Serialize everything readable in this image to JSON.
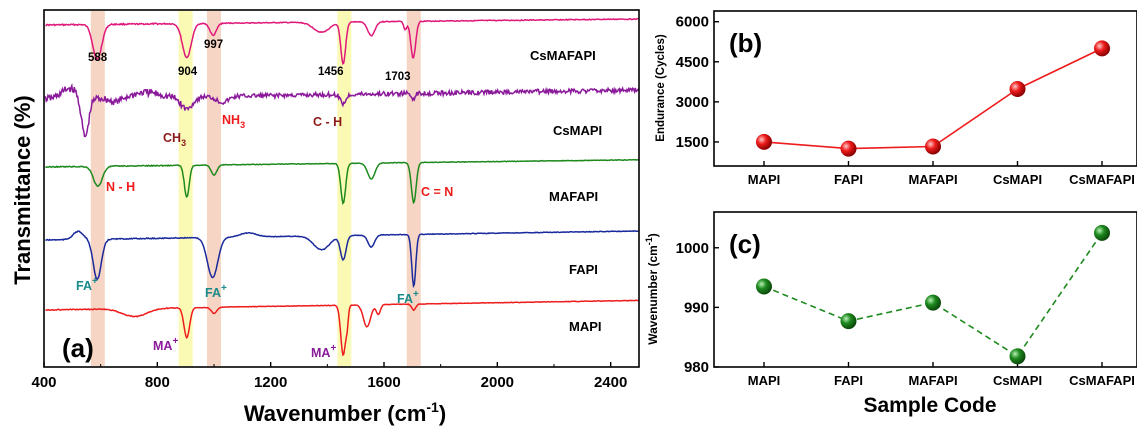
{
  "chart_data": [
    {
      "type": "line",
      "panel_label": "(a)",
      "xlabel": "Wavenumber (cm",
      "xlabel_sup": "-1",
      "xlabel_close": ")",
      "ylabel": "Transmittance (%)",
      "xlim": [
        400,
        2500
      ],
      "xticks": [
        400,
        800,
        1200,
        1600,
        2000,
        2400
      ],
      "bands": [
        {
          "x": 590,
          "color": "#f6d5c4"
        },
        {
          "x": 900,
          "color": "#fbfab5"
        },
        {
          "x": 1000,
          "color": "#f6d5c4"
        },
        {
          "x": 1460,
          "color": "#fbfab5"
        },
        {
          "x": 1705,
          "color": "#f6d5c4"
        }
      ],
      "series": [
        {
          "name": "CsMAFAPI",
          "color": "#e0187a"
        },
        {
          "name": "CsMAPI",
          "color": "#8b1a9b"
        },
        {
          "name": "MAFAPI",
          "color": "#1e8a1e"
        },
        {
          "name": "FAPI",
          "color": "#1a2a9c"
        },
        {
          "name": "MAPI",
          "color": "#ee1c1c"
        }
      ],
      "peak_labels": [
        "588",
        "904",
        "997",
        "1456",
        "1703"
      ],
      "annotations": [
        {
          "text": "CH",
          "sub": "3",
          "color": "#8b1a1a"
        },
        {
          "text": "NH",
          "sub": "3",
          "color": "#ee1c1c"
        },
        {
          "text": "C - H",
          "color": "#8b1a1a"
        },
        {
          "text": "N - H",
          "color": "#ee1c1c"
        },
        {
          "text": "C = N",
          "color": "#ee1c1c"
        },
        {
          "text": "FA",
          "sup": "+",
          "color": "#1a8a8a"
        },
        {
          "text": "FA",
          "sup": "+",
          "color": "#1a8a8a"
        },
        {
          "text": "FA",
          "sup": "+",
          "color": "#1a8a8a"
        },
        {
          "text": "MA",
          "sup": "+",
          "color": "#8b1a9b"
        },
        {
          "text": "MA",
          "sup": "+",
          "color": "#8b1a9b"
        }
      ]
    },
    {
      "type": "line",
      "panel_label": "(b)",
      "ylabel": "Endurance (Cycles)",
      "categories": [
        "MAPI",
        "FAPI",
        "MAFAPI",
        "CsMAPI",
        "CsMAFAPI"
      ],
      "values": [
        1500,
        1250,
        1330,
        3480,
        5000
      ],
      "ylim": [
        600,
        6400
      ],
      "yticks": [
        1500,
        3000,
        4500,
        6000
      ],
      "color": "#ee1c1c",
      "line_style": "solid"
    },
    {
      "type": "line",
      "panel_label": "(c)",
      "ylabel": "Wavenumber (cm",
      "ylabel_sup": "-1",
      "ylabel_close": ")",
      "xlabel": "Sample Code",
      "categories": [
        "MAPI",
        "FAPI",
        "MAFAPI",
        "CsMAPI",
        "CsMAFAPI"
      ],
      "values": [
        993.5,
        987.7,
        990.8,
        981.8,
        1002.5
      ],
      "ylim": [
        980,
        1006
      ],
      "yticks": [
        980,
        990,
        1000
      ],
      "color": "#1e8a1e",
      "line_style": "dashed"
    }
  ]
}
